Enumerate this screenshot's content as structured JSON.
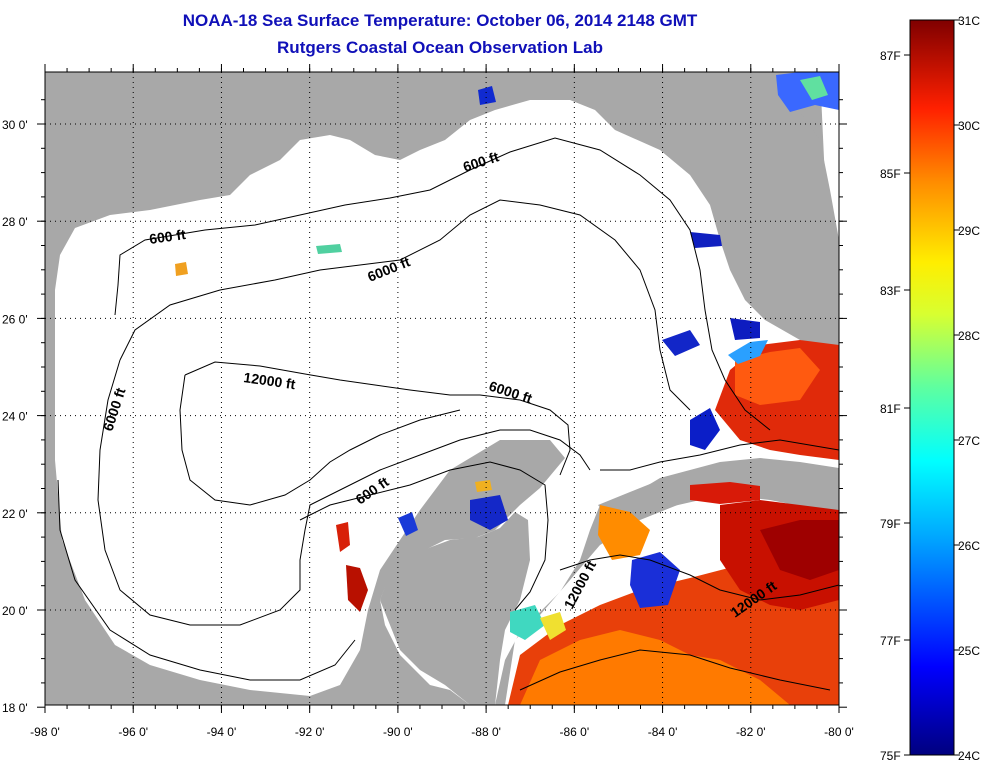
{
  "title": "NOAA-18 Sea Surface Temperature:  October 06, 2014 2148 GMT",
  "subtitle": "Rutgers Coastal Ocean Observation Lab",
  "map": {
    "lon_labels": [
      "-98 0'",
      "-96 0'",
      "-94 0'",
      "-92 0'",
      "-90 0'",
      "-88 0'",
      "-86 0'",
      "-84 0'",
      "-82 0'",
      "-80 0'"
    ],
    "lat_labels": [
      "30 0'",
      "28 0'",
      "26 0'",
      "24 0'",
      "22 0'",
      "20 0'",
      "18 0'"
    ],
    "land_color": "#a8a8a8",
    "water_color": "#ffffff",
    "contour_labels": [
      {
        "text": "600 ft"
      },
      {
        "text": "600 ft"
      },
      {
        "text": "6000 ft"
      },
      {
        "text": "6000 ft"
      },
      {
        "text": "12000 ft"
      },
      {
        "text": "6000 ft"
      },
      {
        "text": "600 ft"
      },
      {
        "text": "12000 ft"
      },
      {
        "text": "12000 ft"
      }
    ]
  },
  "colorbar": {
    "celsius_labels": [
      "31C",
      "30C",
      "29C",
      "28C",
      "27C",
      "26C",
      "25C",
      "24C"
    ],
    "fahrenheit_labels": [
      "87F",
      "85F",
      "83F",
      "81F",
      "79F",
      "77F",
      "75F"
    ],
    "colors": [
      "#7f0000",
      "#c40000",
      "#ff2a00",
      "#ff8c00",
      "#ffdd00",
      "#c8ff3a",
      "#5effa0",
      "#00ffff",
      "#00a8ff",
      "#0040ff",
      "#0000c8",
      "#00007f"
    ]
  }
}
